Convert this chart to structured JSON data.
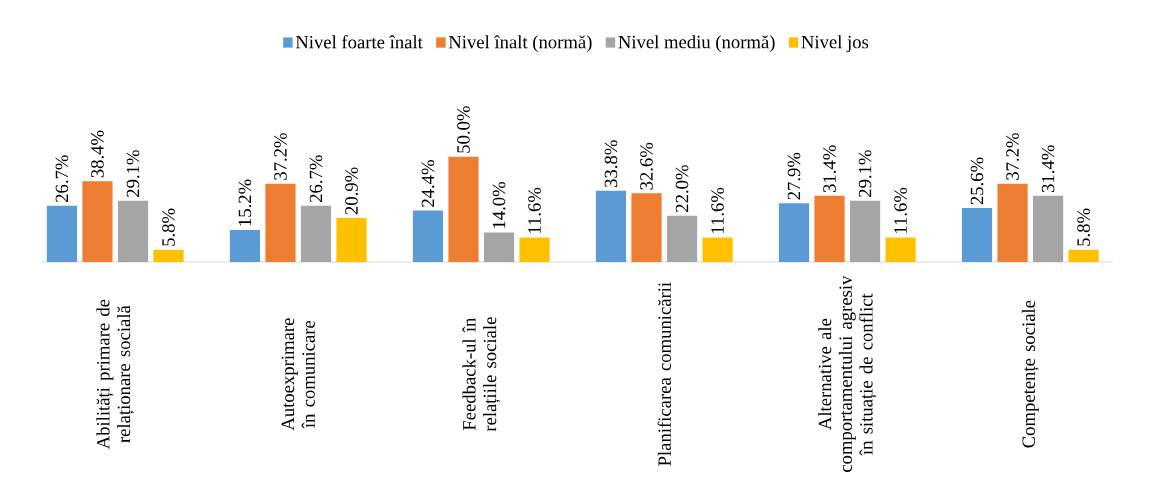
{
  "chart_data": {
    "type": "bar",
    "categories": [
      "Abilități primare de relaționare socială",
      "Autoexprimare în comunicare",
      "Feedback-ul în relațiile sociale",
      "Planificarea comunicării",
      "Alternative ale comportamentului agresiv în situație de conflict",
      "Competențe sociale"
    ],
    "series": [
      {
        "name": "Nivel foarte înalt",
        "color": "#5b9bd5",
        "values": [
          26.7,
          15.2,
          24.4,
          33.8,
          27.9,
          25.6
        ],
        "value_labels": [
          "26.7%",
          "15.2%",
          "24.4%",
          "33.8%",
          "27.9%",
          "25.6%"
        ]
      },
      {
        "name": "Nivel înalt (normă)",
        "color": "#ed7d31",
        "values": [
          38.4,
          37.2,
          50.0,
          32.6,
          31.4,
          37.2
        ],
        "value_labels": [
          "38.4%",
          "37.2%",
          "50.0%",
          "32.6%",
          "31.4%",
          "37.2%"
        ]
      },
      {
        "name": "Nivel mediu (normă)",
        "color": "#a5a5a5",
        "values": [
          29.1,
          26.7,
          14.0,
          22.0,
          29.1,
          31.4
        ],
        "value_labels": [
          "29.1%",
          "26.7%",
          "14.0%",
          "22.0%",
          "29.1%",
          "31.4%"
        ]
      },
      {
        "name": "Nivel jos",
        "color": "#ffc000",
        "values": [
          5.8,
          20.9,
          11.6,
          11.6,
          11.6,
          5.8
        ],
        "value_labels": [
          "5.8%",
          "20.9%",
          "11.6%",
          "11.6%",
          "11.6%",
          "5.8%"
        ]
      }
    ],
    "legend": "top"
  }
}
